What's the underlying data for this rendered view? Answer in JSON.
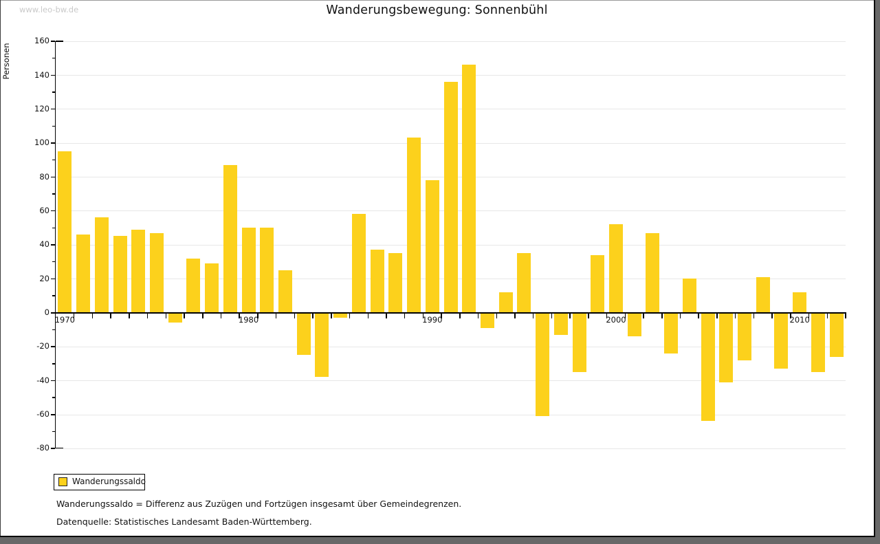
{
  "watermark": "www.leo-bw.de",
  "title": "Wanderungsbewegung: Sonnenbühl",
  "y_axis_label": "Personen",
  "legend": {
    "label": "Wanderungssaldo"
  },
  "footnotes": {
    "definition": "Wanderungssaldo = Differenz aus Zuzügen und Fortzügen insgesamt über Gemeindegrenzen.",
    "source": "Datenquelle: Statistisches Landesamt Baden-Württemberg."
  },
  "colors": {
    "bar": "#fcd11c",
    "gridline": "#e7e7e7",
    "axis": "#000000",
    "watermark": "#c9c9c9",
    "frame_shadow": "#686868"
  },
  "chart_data": {
    "type": "bar",
    "title": "Wanderungsbewegung: Sonnenbühl",
    "xlabel": "",
    "ylabel": "Personen",
    "ylim": [
      -80,
      160
    ],
    "y_major_tick_step": 20,
    "y_minor_tick_step": 10,
    "grid": true,
    "legend_position": "bottom-left",
    "x_axis_labeled_years": [
      1970,
      1980,
      1990,
      2000,
      2010
    ],
    "categories": [
      1970,
      1971,
      1972,
      1973,
      1974,
      1975,
      1976,
      1977,
      1978,
      1979,
      1980,
      1981,
      1982,
      1983,
      1984,
      1985,
      1986,
      1987,
      1988,
      1989,
      1990,
      1991,
      1992,
      1993,
      1994,
      1995,
      1996,
      1997,
      1998,
      1999,
      2000,
      2001,
      2002,
      2003,
      2004,
      2005,
      2006,
      2007,
      2008,
      2009,
      2010,
      2011,
      2012
    ],
    "series": [
      {
        "name": "Wanderungssaldo",
        "values": [
          95,
          46,
          56,
          45,
          49,
          47,
          -6,
          32,
          29,
          87,
          50,
          50,
          25,
          -25,
          -38,
          -3,
          58,
          37,
          35,
          103,
          78,
          136,
          146,
          -9,
          12,
          35,
          -61,
          -13,
          -35,
          34,
          52,
          -14,
          47,
          -24,
          20,
          -64,
          -41,
          -28,
          21,
          -33,
          12,
          -35,
          -26
        ]
      }
    ]
  }
}
